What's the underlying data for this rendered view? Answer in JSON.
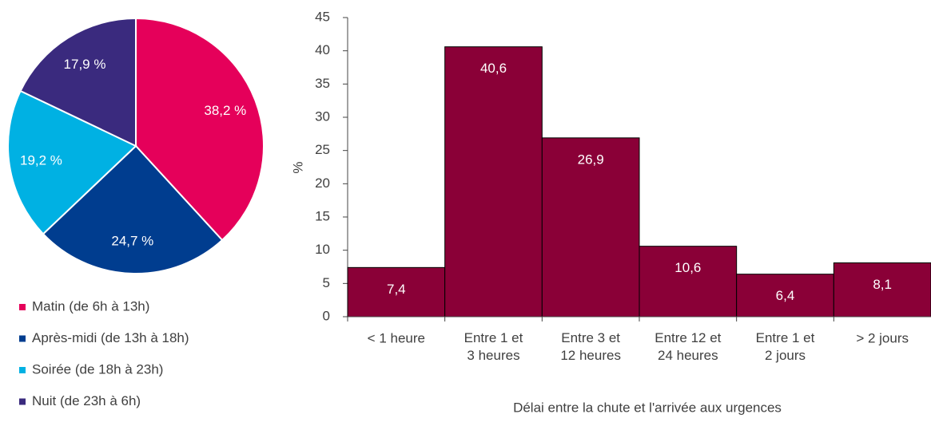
{
  "chart_data": [
    {
      "type": "pie",
      "categories": [
        "Matin (de 6h à 13h)",
        "Après-midi (de 13h à 18h)",
        "Soirée (de 18h à 23h)",
        "Nuit (de 23h à 6h)"
      ],
      "values": [
        38.2,
        24.7,
        19.2,
        17.9
      ],
      "value_labels": [
        "38,2 %",
        "24,7 %",
        "19,2 %",
        "17,9 %"
      ],
      "colors": [
        "#e5005a",
        "#003d8f",
        "#00b1e3",
        "#3a2a7e"
      ]
    },
    {
      "type": "bar",
      "categories": [
        "< 1 heure",
        "Entre 1 et\n3 heures",
        "Entre 3 et\n12 heures",
        "Entre 12 et\n24 heures",
        "Entre 1 et\n2 jours",
        "> 2 jours"
      ],
      "values": [
        7.4,
        40.6,
        26.9,
        10.6,
        6.4,
        8.1
      ],
      "value_labels": [
        "7,4",
        "40,6",
        "26,9",
        "10,6",
        "6,4",
        "8,1"
      ],
      "color": "#8a0037",
      "ylabel": "%",
      "xlabel": "Délai entre la chute et l'arrivée aux urgences",
      "ylim": [
        0,
        45
      ],
      "yticks": [
        0,
        5,
        10,
        15,
        20,
        25,
        30,
        35,
        40,
        45
      ]
    }
  ]
}
